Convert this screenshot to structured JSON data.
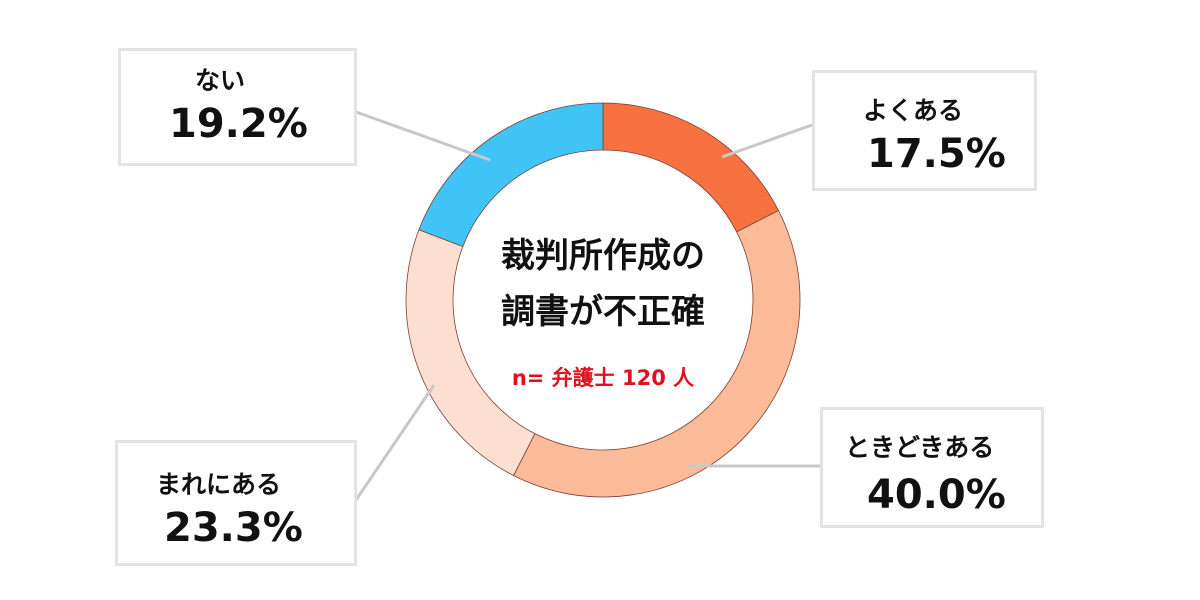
{
  "chart_data": {
    "type": "pie",
    "variant": "donut",
    "title": "裁判所作成の調書が不正確",
    "title_lines": [
      "裁判所作成の",
      "調書が不正確"
    ],
    "subtitle": "n= 弁護士 120 人",
    "slices": [
      {
        "label": "よくある",
        "value": 17.5,
        "display": "17.5%",
        "color": "#F87140"
      },
      {
        "label": "ときどきある",
        "value": 40.0,
        "display": "40.0%",
        "color": "#FCBB98"
      },
      {
        "label": "まれにある",
        "value": 23.3,
        "display": "23.3%",
        "color": "#FDDFD2"
      },
      {
        "label": "ない",
        "value": 19.2,
        "display": "19.2%",
        "color": "#40C4F8"
      }
    ],
    "start": "12 o'clock",
    "direction": "clockwise",
    "legend": "callout boxes"
  }
}
